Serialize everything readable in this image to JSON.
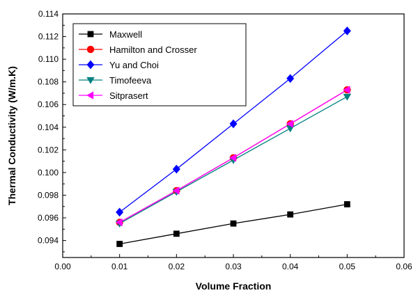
{
  "chart_data": {
    "type": "line",
    "title": "",
    "xlabel": "Volume Fraction",
    "ylabel": "Thermal Conductivity (W/m.K)",
    "xlim": [
      0.0,
      0.06
    ],
    "ylim": [
      0.0925,
      0.114
    ],
    "xticks": [
      0.0,
      0.01,
      0.02,
      0.03,
      0.04,
      0.05,
      0.06
    ],
    "xtick_labels": [
      "0.00",
      "0.01",
      "0.02",
      "0.03",
      "0.04",
      "0.05",
      "0.06"
    ],
    "yticks": [
      0.094,
      0.096,
      0.098,
      0.1,
      0.102,
      0.104,
      0.106,
      0.108,
      0.11,
      0.112,
      0.114
    ],
    "ytick_labels": [
      "0.094",
      "0.096",
      "0.098",
      "0.100",
      "0.102",
      "0.104",
      "0.106",
      "0.108",
      "0.110",
      "0.112",
      "0.114"
    ],
    "grid": false,
    "legend_position": "top-left",
    "x": [
      0.01,
      0.02,
      0.03,
      0.04,
      0.05
    ],
    "series": [
      {
        "name": "Maxwell",
        "color": "#000000",
        "marker": "square",
        "values": [
          0.0937,
          0.0946,
          0.0955,
          0.0963,
          0.0972
        ]
      },
      {
        "name": "Hamilton and Crosser",
        "color": "#ff0000",
        "marker": "circle",
        "values": [
          0.0956,
          0.0984,
          0.1013,
          0.1043,
          0.1073
        ]
      },
      {
        "name": "Yu and Choi",
        "color": "#0000ff",
        "marker": "diamond",
        "values": [
          0.0965,
          0.1003,
          0.1043,
          0.1083,
          0.1125
        ]
      },
      {
        "name": "Timofeeva",
        "color": "#008080",
        "marker": "triangle-down",
        "values": [
          0.0955,
          0.0983,
          0.1011,
          0.1039,
          0.1067
        ]
      },
      {
        "name": "Sitprasert",
        "color": "#ff00ff",
        "marker": "triangle-left",
        "values": [
          0.0956,
          0.0984,
          0.1013,
          0.1043,
          0.1073
        ]
      }
    ]
  }
}
